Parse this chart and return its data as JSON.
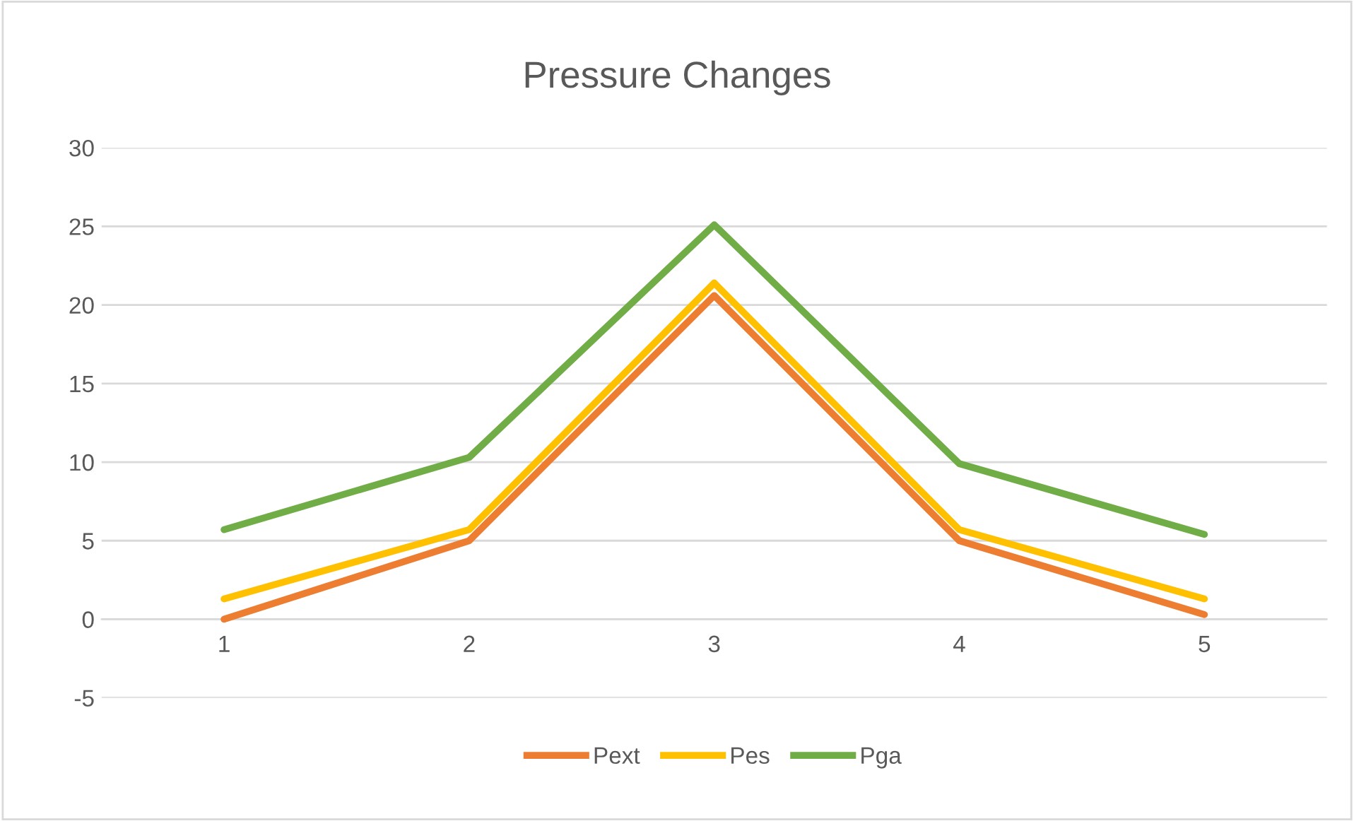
{
  "chart_data": {
    "type": "line",
    "title": "Pressure Changes",
    "categories": [
      "1",
      "2",
      "3",
      "4",
      "5"
    ],
    "series": [
      {
        "name": "Pext",
        "color": "#ed7d31",
        "values": [
          0,
          5,
          20.6,
          5,
          0.3
        ]
      },
      {
        "name": "Pes",
        "color": "#ffc000",
        "values": [
          1.3,
          5.7,
          21.4,
          5.7,
          1.3
        ]
      },
      {
        "name": "Pga",
        "color": "#70ad47",
        "values": [
          5.7,
          10.3,
          25.1,
          9.9,
          5.4
        ]
      }
    ],
    "ylim": [
      -5,
      30
    ],
    "yticks": [
      -5,
      0,
      5,
      10,
      15,
      20,
      25,
      30
    ],
    "grid": "y",
    "legend": "bottom",
    "marker": "none",
    "line_style": "solid"
  }
}
